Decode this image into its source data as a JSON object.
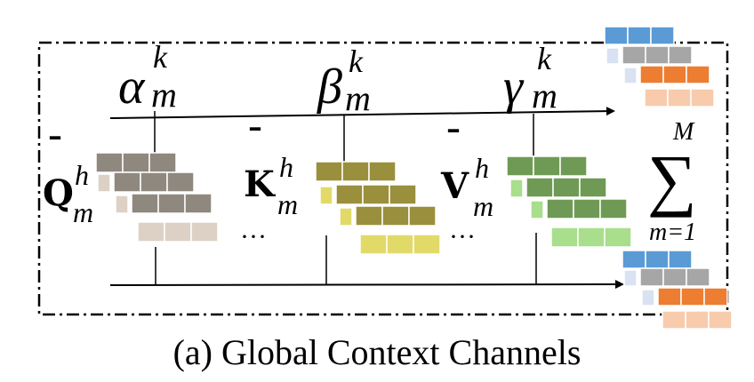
{
  "caption": "(a) Global Context Channels",
  "weights": {
    "alpha": {
      "base": "α",
      "sup": "k",
      "sub": "m"
    },
    "beta": {
      "base": "β",
      "sup": "k",
      "sub": "m"
    },
    "gamma": {
      "base": "γ",
      "sup": "k",
      "sub": "m"
    }
  },
  "matrices": {
    "q": {
      "bar": "¯",
      "base": "Q",
      "sup": "h",
      "sub": "m"
    },
    "k": {
      "bar": "¯",
      "base": "K",
      "sup": "h",
      "sub": "m"
    },
    "v": {
      "bar": "¯",
      "base": "V",
      "sup": "h",
      "sub": "m"
    }
  },
  "ellipsis": "···",
  "sum": {
    "symbol": "∑",
    "upper": "M",
    "lower": "m=1"
  },
  "colors": {
    "query": "#8f887e",
    "query_light": "#dcd1c4",
    "key": "#9a8f3c",
    "key_light": "#e2da68",
    "value": "#6f9a55",
    "value_light": "#a8de8c",
    "out_blue": "#5b9bd5",
    "out_gray": "#a6a6a6",
    "out_orange": "#ed7d31",
    "out_pink": "#f8cbad"
  }
}
